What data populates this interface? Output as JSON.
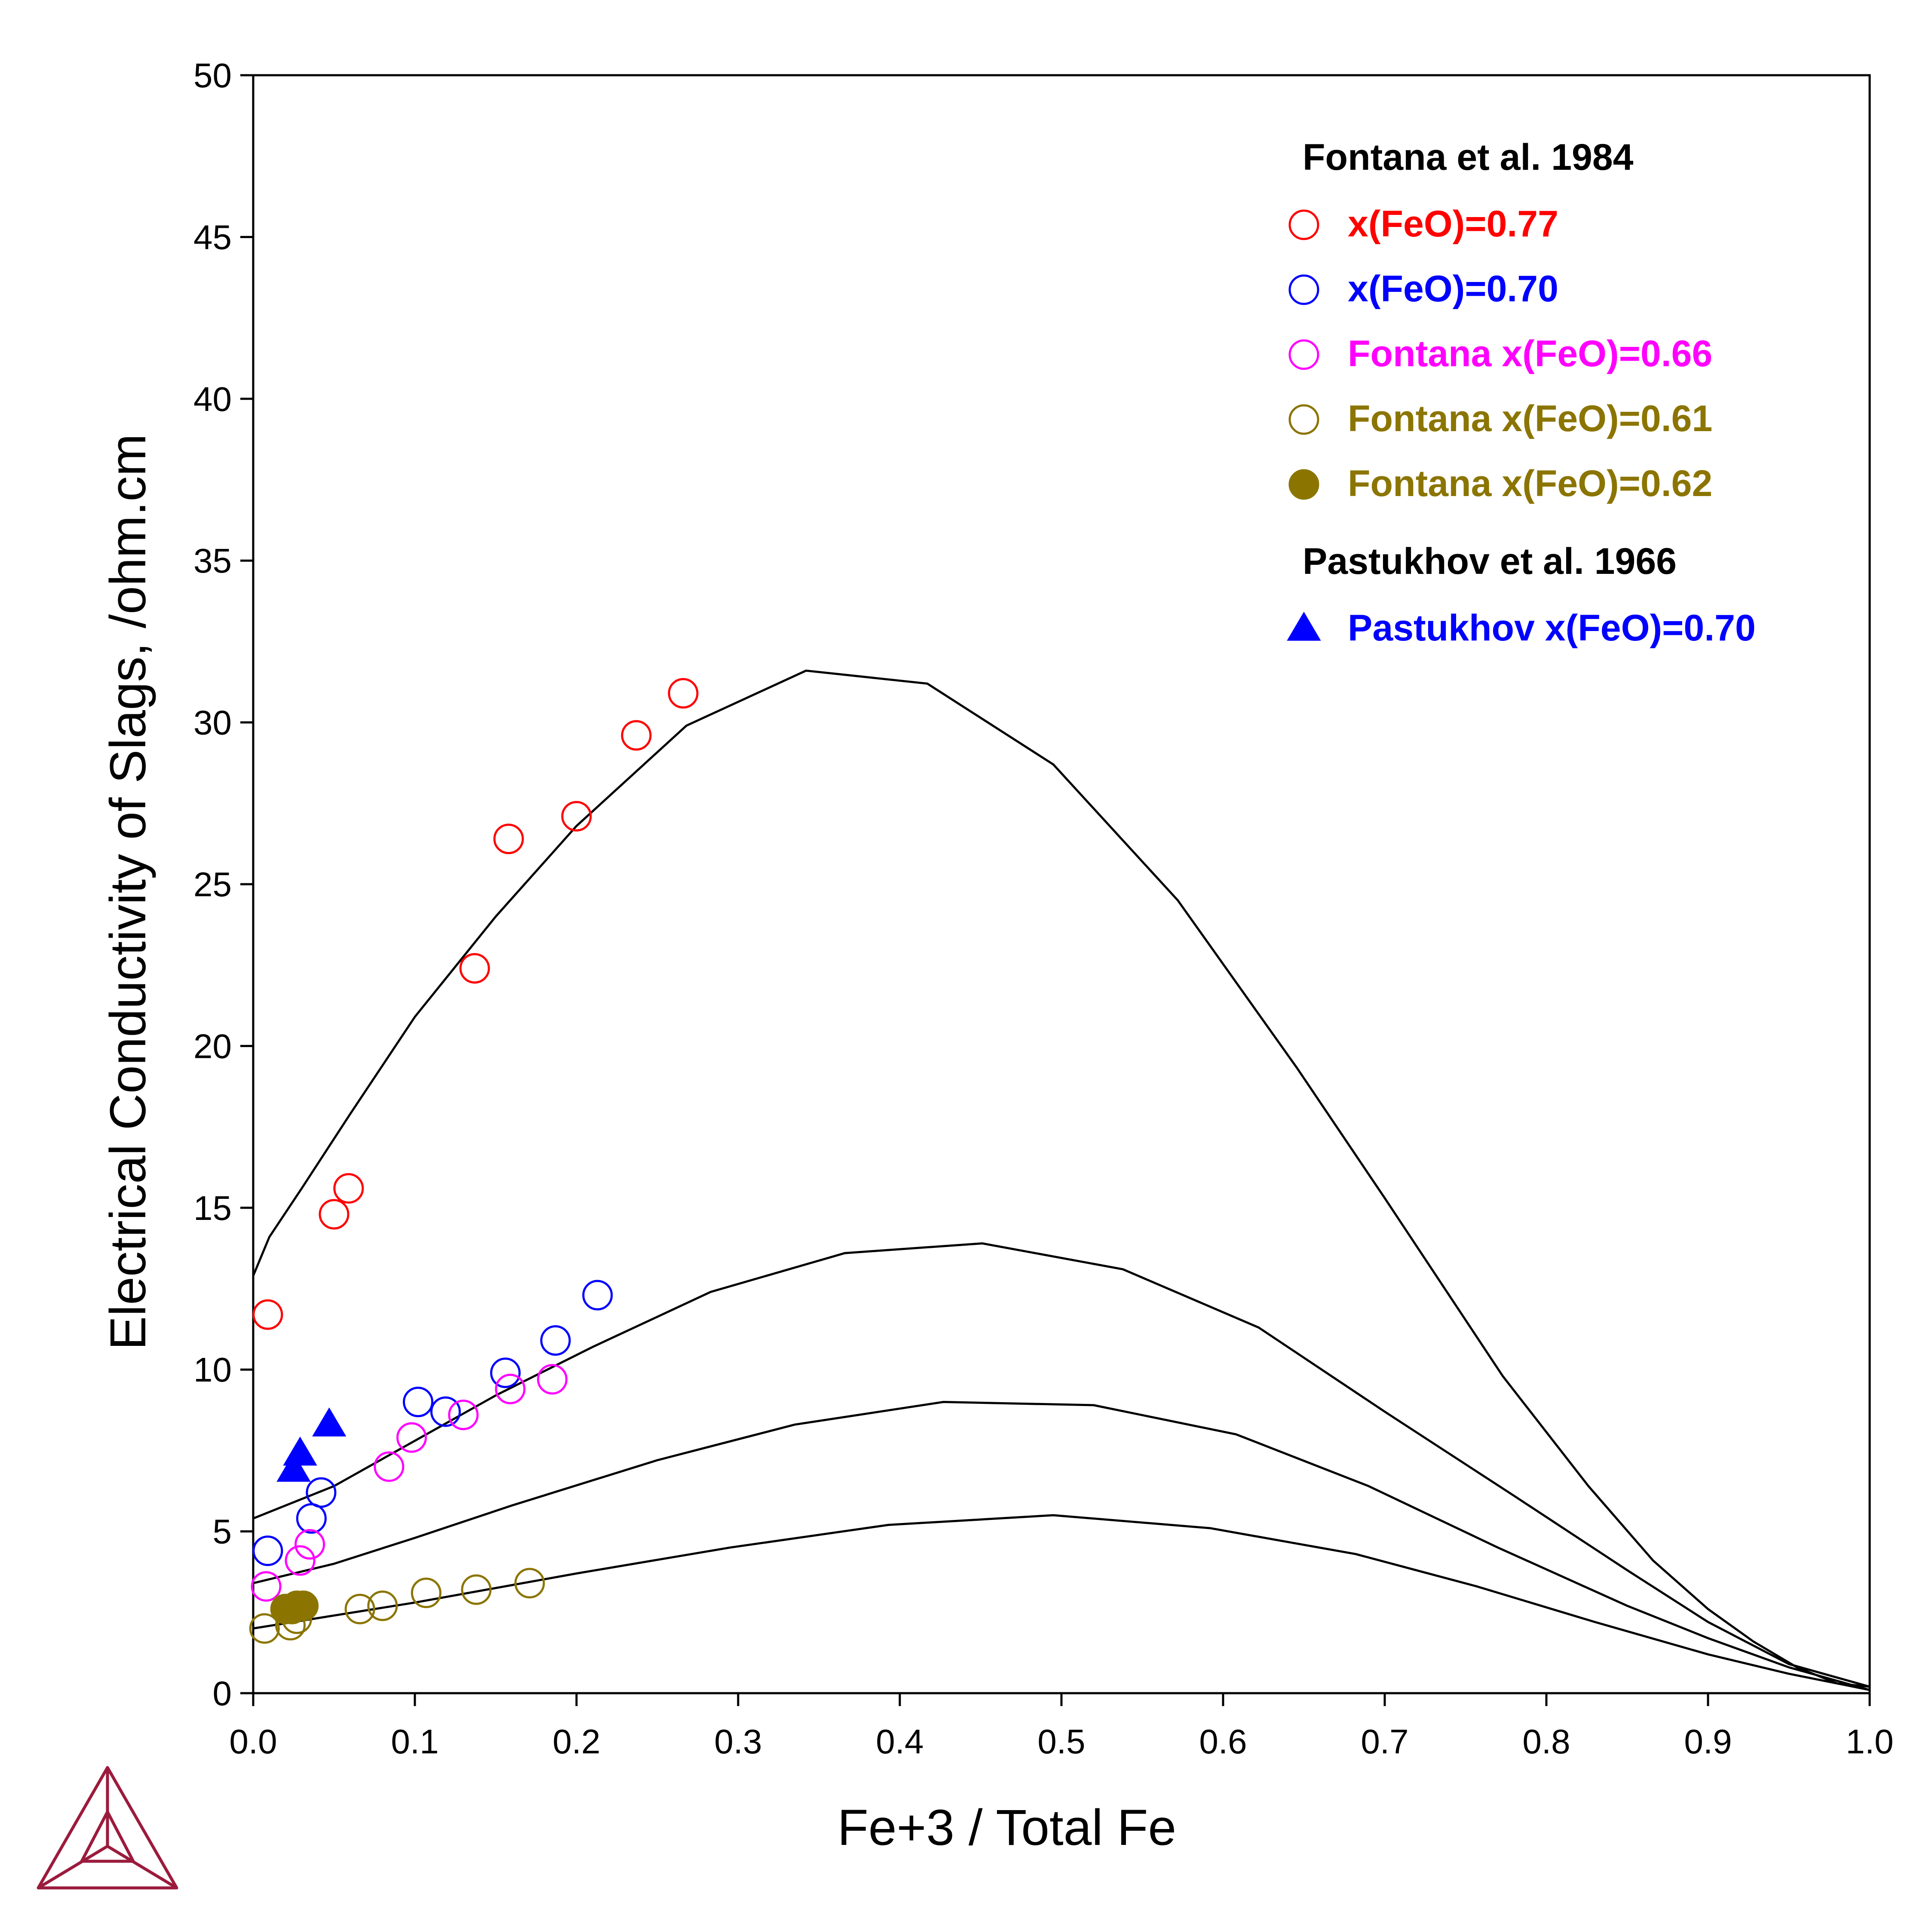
{
  "chart_data": {
    "type": "scatter",
    "xlabel": "Fe+3 / Total Fe",
    "ylabel": "Electrical Conductivity of Slags, /ohm.cm",
    "xlim": [
      0.0,
      1.0
    ],
    "ylim": [
      0,
      50
    ],
    "x_ticks": [
      "0.0",
      "0.1",
      "0.2",
      "0.3",
      "0.4",
      "0.5",
      "0.6",
      "0.7",
      "0.8",
      "0.9",
      "1.0"
    ],
    "y_ticks": [
      "0",
      "5",
      "10",
      "15",
      "20",
      "25",
      "30",
      "35",
      "40",
      "45",
      "50"
    ],
    "grid": false,
    "legend_position": "top-right",
    "legend_groups": [
      {
        "title": "Fontana et al. 1984",
        "series_indices": [
          0,
          1,
          2,
          3,
          4
        ]
      },
      {
        "title": "Pastukhov et al. 1966",
        "series_indices": [
          5
        ]
      }
    ],
    "series": [
      {
        "name": "x(FeO)=0.77",
        "color": "#ff0000",
        "marker": "circle-open",
        "x": [
          0.009,
          0.05,
          0.059,
          0.137,
          0.158,
          0.2,
          0.237,
          0.266
        ],
        "y": [
          11.7,
          14.8,
          15.6,
          22.4,
          26.4,
          27.1,
          29.6,
          30.9
        ]
      },
      {
        "name": "x(FeO)=0.70",
        "color": "#0000ff",
        "marker": "circle-open",
        "x": [
          0.009,
          0.036,
          0.042,
          0.102,
          0.119,
          0.156,
          0.187,
          0.213
        ],
        "y": [
          4.4,
          5.4,
          6.2,
          9.0,
          8.7,
          9.9,
          10.9,
          12.3
        ]
      },
      {
        "name": "Fontana x(FeO)=0.66",
        "color": "#ff00ff",
        "marker": "circle-open",
        "x": [
          0.008,
          0.029,
          0.035,
          0.084,
          0.098,
          0.13,
          0.159,
          0.185
        ],
        "y": [
          3.3,
          4.1,
          4.6,
          7.0,
          7.9,
          8.6,
          9.4,
          9.7
        ]
      },
      {
        "name": "Fontana x(FeO)=0.61",
        "color": "#8b7500",
        "marker": "circle-open",
        "x": [
          0.007,
          0.023,
          0.027,
          0.066,
          0.08,
          0.107,
          0.138,
          0.171
        ],
        "y": [
          2.0,
          2.1,
          2.3,
          2.6,
          2.7,
          3.1,
          3.2,
          3.4
        ]
      },
      {
        "name": "Fontana x(FeO)=0.62",
        "color": "#8b7500",
        "marker": "circle-filled",
        "x": [
          0.02,
          0.024,
          0.027,
          0.031
        ],
        "y": [
          2.6,
          2.6,
          2.7,
          2.7
        ]
      },
      {
        "name": "Pastukhov x(FeO)=0.70",
        "color": "#0000ff",
        "marker": "triangle-filled",
        "x": [
          0.025,
          0.029,
          0.047
        ],
        "y": [
          6.9,
          7.4,
          8.3
        ]
      }
    ],
    "curves": [
      {
        "color": "#000000",
        "x": [
          0.0,
          0.01,
          0.03,
          0.06,
          0.1,
          0.15,
          0.2,
          0.268,
          0.342,
          0.417,
          0.495,
          0.572,
          0.646,
          0.7,
          0.773,
          0.826,
          0.866,
          0.9,
          0.928,
          0.955,
          0.98,
          1.0
        ],
        "y": [
          12.9,
          14.1,
          15.6,
          17.9,
          20.9,
          24.0,
          26.8,
          29.9,
          31.6,
          31.2,
          28.7,
          24.5,
          19.3,
          15.3,
          9.8,
          6.4,
          4.1,
          2.6,
          1.6,
          0.8,
          0.3,
          0.2
        ]
      },
      {
        "color": "#000000",
        "x": [
          0.0,
          0.05,
          0.1,
          0.15,
          0.21,
          0.283,
          0.366,
          0.451,
          0.538,
          0.622,
          0.7,
          0.78,
          0.85,
          0.9,
          0.95,
          1.0
        ],
        "y": [
          5.4,
          6.4,
          7.8,
          9.2,
          10.7,
          12.4,
          13.6,
          13.9,
          13.1,
          11.3,
          8.7,
          6.1,
          3.8,
          2.2,
          0.9,
          0.2
        ]
      },
      {
        "color": "#000000",
        "x": [
          0.0,
          0.05,
          0.1,
          0.16,
          0.25,
          0.335,
          0.427,
          0.52,
          0.608,
          0.69,
          0.77,
          0.85,
          0.9,
          0.95,
          1.0
        ],
        "y": [
          3.4,
          4.0,
          4.8,
          5.8,
          7.2,
          8.3,
          9.0,
          8.9,
          8.0,
          6.4,
          4.5,
          2.7,
          1.7,
          0.8,
          0.1
        ]
      },
      {
        "color": "#000000",
        "x": [
          0.0,
          0.05,
          0.1,
          0.2,
          0.295,
          0.393,
          0.495,
          0.592,
          0.682,
          0.757,
          0.83,
          0.9,
          0.95,
          1.0
        ],
        "y": [
          2.0,
          2.4,
          2.8,
          3.7,
          4.5,
          5.2,
          5.5,
          5.1,
          4.3,
          3.3,
          2.2,
          1.2,
          0.6,
          0.1
        ]
      }
    ]
  },
  "logo": {
    "name": "thermo-calc-logo",
    "color": "#9b1b3c"
  }
}
